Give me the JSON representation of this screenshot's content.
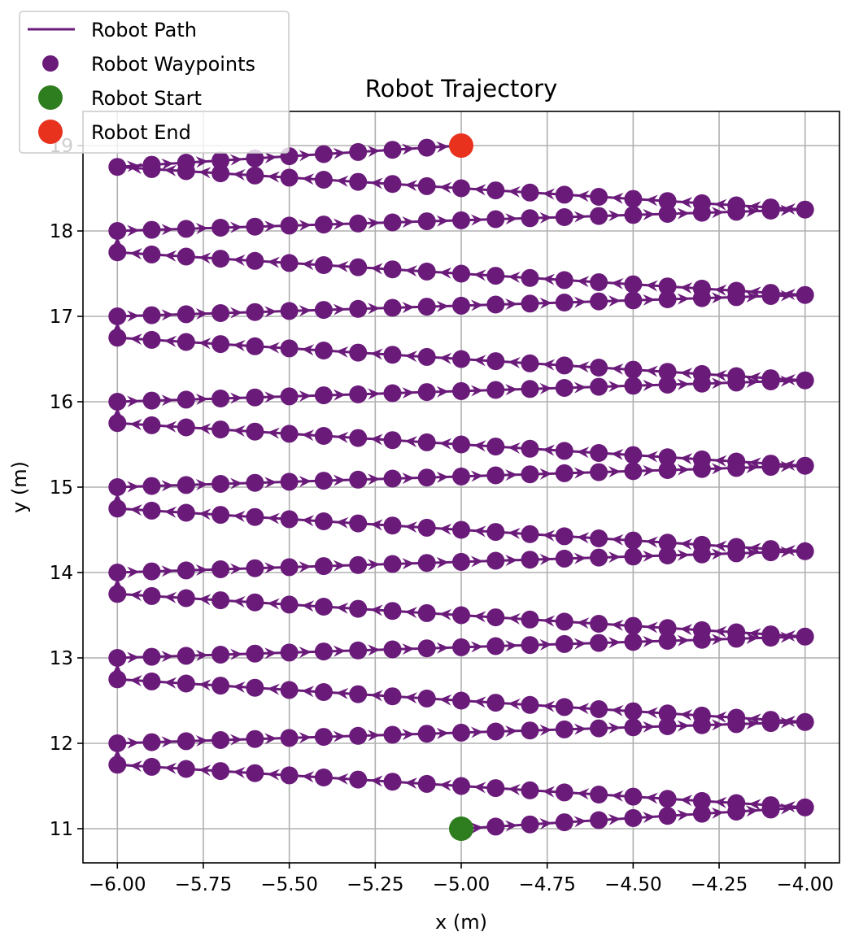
{
  "chart_data": {
    "type": "line",
    "title": "Robot Trajectory",
    "xlabel": "x (m)",
    "ylabel": "y (m)",
    "xlim": [
      -6.1,
      -3.9
    ],
    "ylim": [
      10.6,
      19.4
    ],
    "xticks": [
      -6.0,
      -5.75,
      -5.5,
      -5.25,
      -5.0,
      -4.75,
      -4.5,
      -4.25,
      -4.0
    ],
    "xtick_labels": [
      "−6.00",
      "−5.75",
      "−5.50",
      "−5.25",
      "−5.00",
      "−4.75",
      "−4.50",
      "−4.25",
      "−4.00"
    ],
    "yticks": [
      11,
      12,
      13,
      14,
      15,
      16,
      17,
      18,
      19
    ],
    "ytick_labels": [
      "11",
      "12",
      "13",
      "14",
      "15",
      "16",
      "17",
      "18",
      "19"
    ],
    "grid": true,
    "legend_location": "top-left",
    "series": [
      {
        "name": "Robot Path",
        "kind": "line",
        "color": "#6a1b7a"
      },
      {
        "name": "Robot Waypoints",
        "kind": "scatter",
        "color": "#6a1b7a"
      },
      {
        "name": "Robot Start",
        "kind": "scatter",
        "color": "#2e7d1e",
        "points": [
          [
            -5.0,
            11.0
          ]
        ]
      },
      {
        "name": "Robot End",
        "kind": "scatter",
        "color": "#e8321e",
        "points": [
          [
            -5.0,
            19.0
          ]
        ]
      }
    ],
    "path_start": [
      -5.0,
      11.0
    ],
    "path_end": [
      -5.0,
      19.0
    ],
    "lap_x_range": [
      -6.0,
      -4.0
    ],
    "lap_y_starts": [
      11.0,
      12.0,
      13.0,
      14.0,
      15.0,
      16.0,
      17.0,
      18.0
    ],
    "lap_turn_y_offsets": [
      0.25,
      0.75
    ],
    "waypoint_x_step": 0.1
  }
}
